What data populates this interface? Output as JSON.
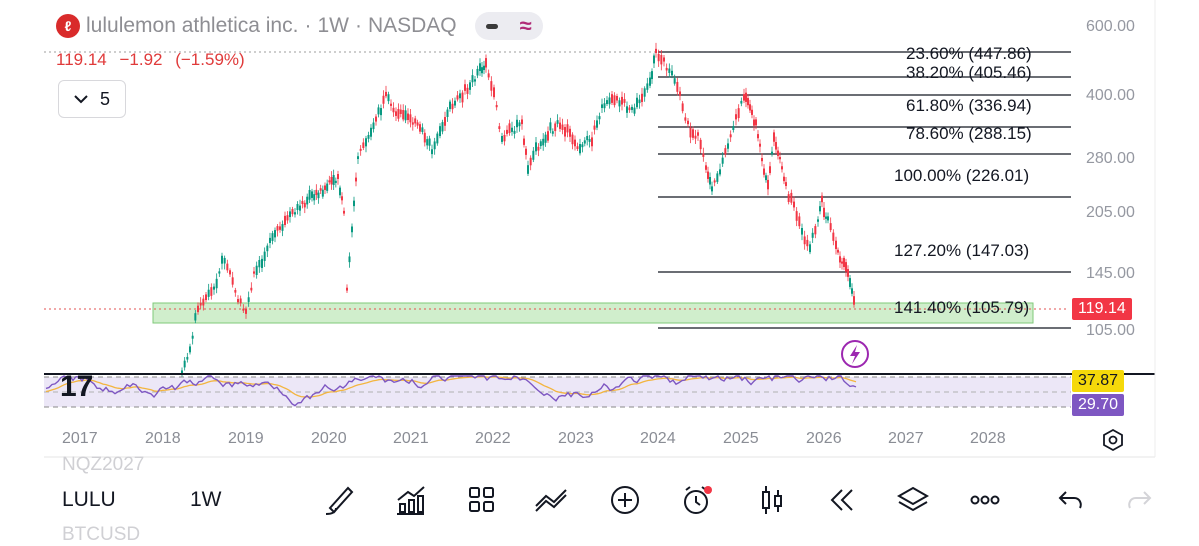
{
  "header": {
    "symbol_name": "lululemon athletica inc.",
    "sep1": "·",
    "interval": "1W",
    "sep2": "·",
    "exchange": "NASDAQ",
    "logo_glyph": "ℓ"
  },
  "quote": {
    "last": "119.14",
    "change": "−1.92",
    "change_pct": "(−1.59%)"
  },
  "indicator_toggle": {
    "icon": "chevron-down-icon",
    "count": "5"
  },
  "price_axis": {
    "ticks": [
      "600.00",
      "400.00",
      "280.00",
      "205.00",
      "145.00",
      "105.00"
    ],
    "last_price_tag": "119.14",
    "last_price_color": "#f23645"
  },
  "fib_levels": [
    {
      "label": "23.60% (447.86)"
    },
    {
      "label": "38.20% (405.46)"
    },
    {
      "label": "61.80% (336.94)"
    },
    {
      "label": "78.60% (288.15)"
    },
    {
      "label": "100.00% (226.01)"
    },
    {
      "label": "127.20% (147.03)"
    },
    {
      "label": "141.40% (105.79)"
    }
  ],
  "rsi": {
    "tag_upper": "37.87",
    "tag_upper_color": "#f5d90a",
    "tag_lower": "29.70",
    "tag_lower_color": "#7e57c2"
  },
  "time_axis": [
    "2017",
    "2018",
    "2019",
    "2020",
    "2021",
    "2022",
    "2023",
    "2024",
    "2025",
    "2026",
    "2027",
    "2028"
  ],
  "colors": {
    "up": "#089981",
    "down": "#f23645",
    "zone": "#c8ebc3",
    "rsi_line": "#7e57c2",
    "rsi_ma": "#f3b53f"
  },
  "bottom_bar": {
    "ghost_top": "NQZ2027",
    "symbol": "LULU",
    "interval": "1W",
    "ghost_bottom": "BTCUSD",
    "icons": [
      "brush-icon",
      "indicators-icon",
      "templates-icon",
      "compare-icon",
      "add-icon",
      "alert-icon",
      "chart-type-icon",
      "replay-icon",
      "layers-icon",
      "more-icon",
      "undo-icon",
      "redo-icon"
    ]
  }
}
